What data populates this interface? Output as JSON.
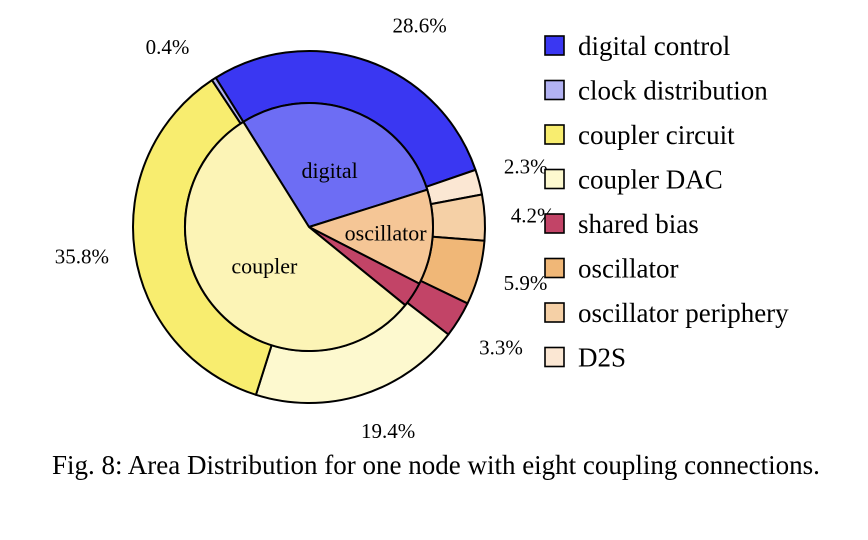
{
  "chart_data": {
    "type": "pie",
    "variant": "nested-donut",
    "outer": {
      "slices": [
        {
          "name": "digital control",
          "value": 28.6,
          "label": "28.6%",
          "color": "#3a37f2"
        },
        {
          "name": "D2S",
          "value": 2.3,
          "label": "2.3%",
          "color": "#fbe7d3"
        },
        {
          "name": "oscillator periphery",
          "value": 4.2,
          "label": "4.2%",
          "color": "#f5d0a6"
        },
        {
          "name": "oscillator",
          "value": 5.9,
          "label": "5.9%",
          "color": "#f0b777"
        },
        {
          "name": "shared bias",
          "value": 3.3,
          "label": "3.3%",
          "color": "#c24467"
        },
        {
          "name": "coupler DAC",
          "value": 19.4,
          "label": "19.4%",
          "color": "#fdf9cf"
        },
        {
          "name": "coupler circuit",
          "value": 35.8,
          "label": "35.8%",
          "color": "#f8ed6f"
        },
        {
          "name": "clock distribution",
          "value": 0.4,
          "label": "0.4%",
          "color": "#b2b2f2"
        }
      ]
    },
    "inner": {
      "slices": [
        {
          "name": "digital",
          "label": "digital",
          "value": 29.0,
          "color": "#6d6df4"
        },
        {
          "name": "oscillator",
          "label": "oscillator",
          "value": 12.4,
          "color": "#f5c696"
        },
        {
          "name": "shared bias",
          "label": "",
          "value": 3.3,
          "color": "#c24467"
        },
        {
          "name": "coupler",
          "label": "coupler",
          "value": 55.2,
          "color": "#fcf4b6"
        }
      ]
    },
    "legend": {
      "placement": "right",
      "entries": [
        {
          "name": "digital control",
          "color": "#3a37f2"
        },
        {
          "name": "clock distribution",
          "color": "#b2b2f2"
        },
        {
          "name": "coupler circuit",
          "color": "#f8ed6f"
        },
        {
          "name": "coupler DAC",
          "color": "#fdf9cf"
        },
        {
          "name": "shared bias",
          "color": "#c24467"
        },
        {
          "name": "oscillator",
          "color": "#f0b777"
        },
        {
          "name": "oscillator periphery",
          "color": "#f5d0a6"
        },
        {
          "name": "D2S",
          "color": "#fbe7d3"
        }
      ]
    }
  },
  "caption": "Fig. 8: Area Distribution for one node with eight coupling connections."
}
